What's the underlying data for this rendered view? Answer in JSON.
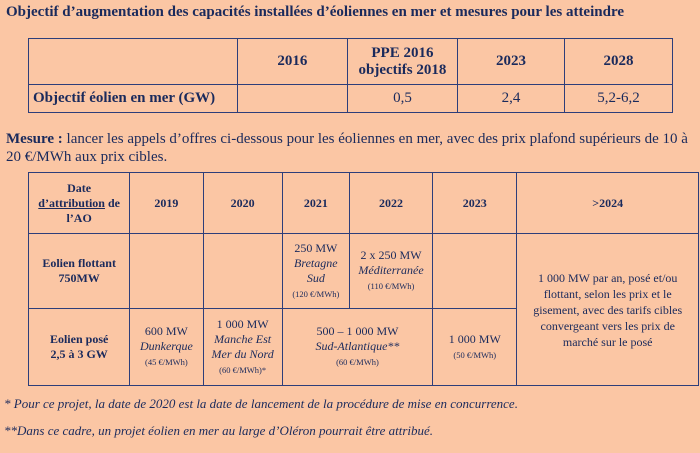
{
  "title": "Objectif d’augmentation des capacités installées d’éoliennes en mer et mesures pour les atteindre",
  "table1": {
    "headers": [
      "2016",
      "PPE 2016\nobjectifs 2018",
      "2023",
      "2028"
    ],
    "row_label": "Objectif éolien en mer (GW)",
    "values": [
      "",
      "0,5",
      "2,4",
      "5,2-6,2"
    ]
  },
  "mesure": {
    "label": "Mesure :",
    "text": " lancer les appels d’offres ci-dessous pour les éoliennes en mer, avec des prix plafond supérieurs de 10 à 20 €/MWh aux prix cibles."
  },
  "table2": {
    "corner_line1": "Date",
    "corner_attr": "d’attribution",
    "corner_line2": " de",
    "corner_line3": "l’AO",
    "years": [
      "2019",
      "2020",
      "2021",
      "2022",
      "2023",
      ">2024"
    ],
    "row1": {
      "label_line1": "Eolien flottant",
      "label_line2": "750MW",
      "c2021": {
        "mw": "250 MW",
        "loc1": "Bretagne",
        "loc2": "Sud",
        "price": "(120 €/MWh)"
      },
      "c2022": {
        "mw": "2 x 250 MW",
        "loc1": "Méditerranée",
        "price": "(110 €/MWh)"
      }
    },
    "row2": {
      "label_line1": "Eolien posé",
      "label_line2": "2,5 à 3 GW",
      "c2019": {
        "mw": "600 MW",
        "loc1": "Dunkerque",
        "price": "(45 €/MWh)"
      },
      "c2020": {
        "mw": "1 000 MW",
        "loc1": "Manche Est",
        "loc2": "Mer du Nord",
        "price": "(60 €/MWh)*"
      },
      "c2021_22": {
        "mw": "500 – 1 000 MW",
        "loc1": "Sud-Atlantique**",
        "price": "(60 €/MWh)"
      },
      "c2023": {
        "mw": "1 000 MW",
        "price": "(50 €/MWh)"
      }
    },
    "merged_2024": "1 000 MW par an, posé et/ou flottant, selon les prix et le gisement, avec des tarifs cibles convergeant vers les prix de marché sur le posé"
  },
  "notes": [
    "* Pour ce projet, la date de 2020 est la date de lancement de la procédure de mise en concurrence.",
    "**Dans ce cadre, un projet éolien en mer au large d’Oléron pourrait être attribué."
  ]
}
